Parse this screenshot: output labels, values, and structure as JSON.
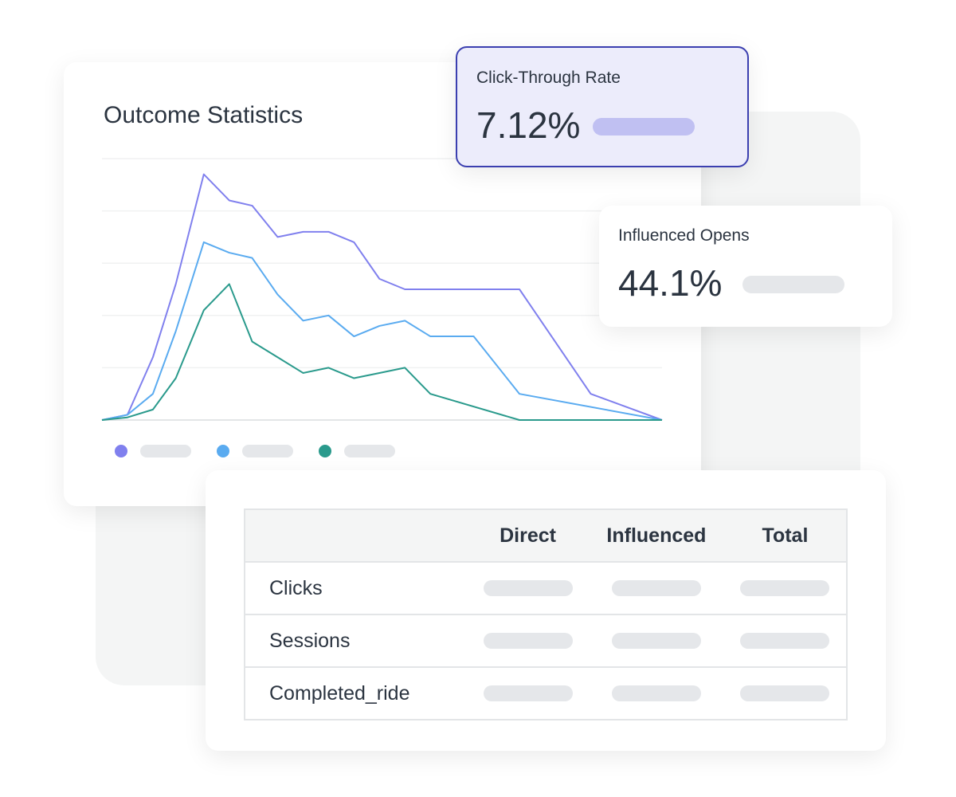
{
  "chart_card": {
    "title": "Outcome Statistics"
  },
  "kpis": [
    {
      "label": "Click-Through Rate",
      "value": "7.12%",
      "bar_color": "#c0c0f2",
      "bg": "#ececfb",
      "border": "#3b3fb0"
    },
    {
      "label": "Influenced Opens",
      "value": "44.1%",
      "bar_color": "#e5e7ea"
    }
  ],
  "table": {
    "headers": [
      "",
      "Direct",
      "Influenced",
      "Total"
    ],
    "rows": [
      {
        "name": "Clicks"
      },
      {
        "name": "Sessions"
      },
      {
        "name": "Completed_ride"
      }
    ]
  },
  "chart_data": {
    "type": "line",
    "title": "Outcome Statistics",
    "xlabel": "",
    "ylabel": "",
    "xlim": [
      0,
      22
    ],
    "ylim": [
      0,
      5
    ],
    "grid": true,
    "legend": "bottom-left",
    "series": [
      {
        "color": "#8080ee",
        "x": [
          0,
          1,
          2,
          2.9,
          4,
          5,
          5.9,
          6.9,
          7.9,
          8.9,
          9.9,
          10.9,
          11.9,
          16.4,
          19.2,
          22
        ],
        "y": [
          0,
          0.1,
          1.2,
          2.6,
          4.7,
          4.2,
          4.1,
          3.5,
          3.6,
          3.6,
          3.4,
          2.7,
          2.5,
          2.5,
          0.5,
          0
        ]
      },
      {
        "color": "#5aabf0",
        "x": [
          0,
          1,
          2,
          2.9,
          4,
          5,
          5.9,
          6.9,
          7.9,
          8.9,
          9.9,
          10.9,
          11.9,
          12.9,
          14.6,
          16.4,
          22
        ],
        "y": [
          0,
          0.1,
          0.5,
          1.7,
          3.4,
          3.2,
          3.1,
          2.4,
          1.9,
          2.0,
          1.6,
          1.8,
          1.9,
          1.6,
          1.6,
          0.5,
          0
        ]
      },
      {
        "color": "#2a9a8c",
        "x": [
          0,
          1,
          2,
          2.9,
          4,
          5,
          5.9,
          6.9,
          7.9,
          8.9,
          9.9,
          10.9,
          11.9,
          12.9,
          16.4,
          22
        ],
        "y": [
          0,
          0.05,
          0.2,
          0.8,
          2.1,
          2.6,
          1.5,
          1.2,
          0.9,
          1.0,
          0.8,
          0.9,
          1.0,
          0.5,
          0,
          0
        ]
      }
    ]
  }
}
